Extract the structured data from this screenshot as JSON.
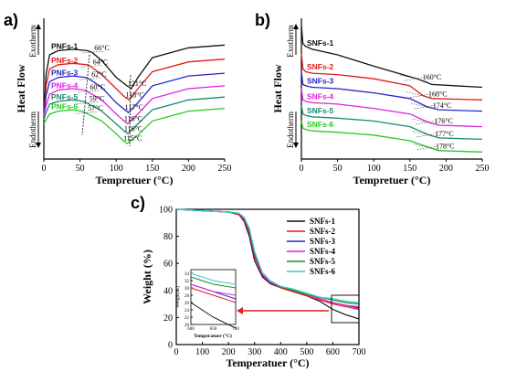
{
  "colors": {
    "SFs1": "#111111",
    "SFs2": "#e01b1b",
    "SFs3": "#2525c8",
    "SFs4": "#e020e0",
    "SFs5": "#1a8a6e",
    "SFs6": "#22cc22",
    "c5": "#1f8f1f",
    "c6": "#2ed0c8",
    "arrow": "#e02020"
  },
  "panels": {
    "a": "a)",
    "b": "b)",
    "c": "c)"
  },
  "chart_data": [
    {
      "id": "a",
      "type": "line",
      "xlabel": "Tempretuer (°C)",
      "ylabel": "Heat Flow",
      "xlim": [
        0,
        250
      ],
      "xticks": [
        "0",
        "50",
        "100",
        "150",
        "200",
        "250"
      ],
      "exo": "Exotherm",
      "endo": "Endotherm",
      "series_labels": [
        "PNFs-1",
        "PNFs-2",
        "PNFs-3",
        "PNFs-4",
        "PNFs-5",
        "PNFs-6"
      ],
      "series": [
        {
          "name": "PNFs-1",
          "ann": [
            "66°C",
            "121°C"
          ],
          "x": [
            0,
            3,
            8,
            20,
            40,
            60,
            66,
            80,
            100,
            115,
            121,
            130,
            150,
            200,
            250
          ],
          "y": [
            0.3,
            0.6,
            0.74,
            0.77,
            0.78,
            0.77,
            0.76,
            0.7,
            0.58,
            0.52,
            0.5,
            0.58,
            0.72,
            0.79,
            0.81
          ]
        },
        {
          "name": "PNFs-2",
          "ann": [
            "64°C",
            "118°C"
          ],
          "x": [
            0,
            3,
            8,
            20,
            40,
            60,
            64,
            80,
            100,
            112,
            118,
            130,
            150,
            200,
            250
          ],
          "y": [
            0.3,
            0.52,
            0.64,
            0.67,
            0.68,
            0.67,
            0.66,
            0.6,
            0.5,
            0.44,
            0.42,
            0.5,
            0.62,
            0.69,
            0.71
          ]
        },
        {
          "name": "PNFs-3",
          "ann": [
            "62°C",
            "117°C"
          ],
          "x": [
            0,
            3,
            8,
            20,
            40,
            58,
            62,
            80,
            100,
            112,
            117,
            130,
            150,
            200,
            250
          ],
          "y": [
            0.3,
            0.45,
            0.55,
            0.58,
            0.59,
            0.58,
            0.57,
            0.51,
            0.4,
            0.35,
            0.33,
            0.4,
            0.52,
            0.59,
            0.61
          ]
        },
        {
          "name": "PNFs-4",
          "ann": [
            "60°C",
            "116°C"
          ],
          "x": [
            0,
            3,
            8,
            20,
            40,
            56,
            60,
            80,
            100,
            111,
            116,
            130,
            150,
            200,
            250
          ],
          "y": [
            0.3,
            0.38,
            0.46,
            0.49,
            0.5,
            0.49,
            0.48,
            0.42,
            0.32,
            0.27,
            0.25,
            0.32,
            0.43,
            0.5,
            0.52
          ]
        },
        {
          "name": "PNFs-5",
          "ann": [
            "59°C",
            "116°C"
          ],
          "x": [
            0,
            3,
            8,
            20,
            40,
            55,
            59,
            80,
            100,
            111,
            116,
            130,
            150,
            200,
            250
          ],
          "y": [
            0.28,
            0.33,
            0.39,
            0.41,
            0.42,
            0.41,
            0.4,
            0.34,
            0.25,
            0.2,
            0.18,
            0.25,
            0.35,
            0.42,
            0.44
          ]
        },
        {
          "name": "PNFs-6",
          "ann": [
            "57°C",
            "115°C"
          ],
          "x": [
            0,
            3,
            8,
            20,
            40,
            53,
            57,
            80,
            100,
            110,
            115,
            130,
            150,
            200,
            250
          ],
          "y": [
            0.25,
            0.28,
            0.32,
            0.34,
            0.35,
            0.34,
            0.33,
            0.27,
            0.18,
            0.13,
            0.11,
            0.17,
            0.27,
            0.34,
            0.36
          ]
        }
      ]
    },
    {
      "id": "b",
      "type": "line",
      "xlabel": "Tempretuer (°C)",
      "ylabel": "Heat Flow",
      "xlim": [
        0,
        250
      ],
      "xticks": [
        "0",
        "50",
        "100",
        "150",
        "200",
        "250"
      ],
      "exo": "Exotherm",
      "endo": "Endotherm",
      "series_labels": [
        "SNFs-1",
        "SNFs-2",
        "SNFs-3",
        "SNFs-4",
        "SNFs-5",
        "SNFs-6"
      ],
      "series": [
        {
          "name": "SNFs-1",
          "ann": "160°C",
          "x": [
            0,
            2,
            6,
            15,
            50,
            100,
            140,
            160,
            180,
            250
          ],
          "y": [
            0.95,
            0.82,
            0.8,
            0.78,
            0.74,
            0.66,
            0.6,
            0.57,
            0.53,
            0.51
          ]
        },
        {
          "name": "SNFs-2",
          "ann": "168°C",
          "x": [
            0,
            2,
            6,
            15,
            50,
            100,
            150,
            168,
            180,
            250
          ],
          "y": [
            0.75,
            0.64,
            0.62,
            0.61,
            0.6,
            0.57,
            0.52,
            0.45,
            0.43,
            0.42
          ]
        },
        {
          "name": "SNFs-3",
          "ann": "174°C",
          "x": [
            0,
            2,
            6,
            15,
            50,
            100,
            150,
            174,
            190,
            250
          ],
          "y": [
            0.62,
            0.53,
            0.52,
            0.51,
            0.5,
            0.47,
            0.43,
            0.37,
            0.35,
            0.34
          ]
        },
        {
          "name": "SNFs-4",
          "ann": "176°C",
          "x": [
            0,
            2,
            6,
            15,
            50,
            100,
            150,
            176,
            190,
            250
          ],
          "y": [
            0.5,
            0.42,
            0.41,
            0.4,
            0.39,
            0.36,
            0.32,
            0.26,
            0.24,
            0.23
          ]
        },
        {
          "name": "SNFs-5",
          "ann": "177°C",
          "x": [
            0,
            2,
            6,
            15,
            50,
            100,
            150,
            177,
            190,
            250
          ],
          "y": [
            0.38,
            0.32,
            0.31,
            0.3,
            0.29,
            0.27,
            0.23,
            0.17,
            0.15,
            0.14
          ]
        },
        {
          "name": "SNFs-6",
          "ann": "178°C",
          "x": [
            0,
            2,
            6,
            15,
            50,
            100,
            150,
            178,
            190,
            250
          ],
          "y": [
            0.27,
            0.22,
            0.21,
            0.2,
            0.19,
            0.17,
            0.13,
            0.08,
            0.06,
            0.05
          ]
        }
      ]
    },
    {
      "id": "c",
      "type": "line",
      "xlabel": "Temperatuer (°C)",
      "ylabel": "Weight (%)",
      "xlim": [
        0,
        700
      ],
      "ylim": [
        0,
        100
      ],
      "xticks": [
        "0",
        "100",
        "200",
        "300",
        "400",
        "500",
        "600",
        "700"
      ],
      "yticks": [
        "0",
        "20",
        "40",
        "60",
        "80",
        "100"
      ],
      "legend_position": "top-right",
      "series": [
        {
          "name": "SNFs-1",
          "x": [
            0,
            100,
            200,
            240,
            260,
            280,
            300,
            330,
            360,
            400,
            450,
            500,
            550,
            600,
            650,
            700
          ],
          "y": [
            100,
            99,
            98,
            96,
            91,
            80,
            62,
            50,
            45,
            42,
            39,
            36,
            32,
            26,
            22,
            19
          ]
        },
        {
          "name": "SNFs-2",
          "x": [
            0,
            100,
            200,
            240,
            260,
            280,
            300,
            330,
            360,
            400,
            450,
            500,
            550,
            600,
            650,
            700
          ],
          "y": [
            100,
            99,
            98,
            96,
            92,
            82,
            65,
            51,
            46,
            42,
            39,
            36,
            33,
            30,
            28,
            26
          ]
        },
        {
          "name": "SNFs-3",
          "x": [
            0,
            100,
            200,
            240,
            260,
            280,
            300,
            330,
            360,
            400,
            450,
            500,
            550,
            600,
            650,
            700
          ],
          "y": [
            100,
            99,
            98,
            97,
            93,
            84,
            67,
            52,
            46,
            43,
            40,
            37,
            34,
            31,
            29,
            27
          ]
        },
        {
          "name": "SNFs-4",
          "x": [
            0,
            100,
            200,
            240,
            260,
            280,
            300,
            330,
            360,
            400,
            450,
            500,
            550,
            600,
            650,
            700
          ],
          "y": [
            100,
            99,
            98,
            97,
            93,
            84,
            67,
            52,
            46,
            43,
            40,
            37,
            34,
            31,
            29,
            28
          ]
        },
        {
          "name": "SNFs-5",
          "x": [
            0,
            100,
            200,
            240,
            260,
            280,
            300,
            330,
            360,
            400,
            450,
            500,
            550,
            600,
            650,
            700
          ],
          "y": [
            100,
            99,
            98,
            97,
            94,
            85,
            68,
            53,
            47,
            43,
            40,
            37,
            35,
            33,
            31,
            30
          ]
        },
        {
          "name": "SNFs-6",
          "x": [
            0,
            100,
            200,
            240,
            260,
            280,
            300,
            330,
            360,
            400,
            450,
            500,
            550,
            600,
            650,
            700
          ],
          "y": [
            100,
            99,
            98,
            97,
            94,
            86,
            69,
            53,
            47,
            43,
            41,
            38,
            35,
            34,
            32,
            31
          ]
        }
      ],
      "inset": {
        "xlabel": "Temperatuer (°C)",
        "ylabel": "Weight(%)",
        "xlim": [
          600,
          700
        ],
        "ylim": [
          20,
          35
        ],
        "xticks": [
          "600",
          "650",
          "700"
        ],
        "yticks": [
          "20",
          "22",
          "24",
          "26",
          "28",
          "30",
          "32",
          "34"
        ]
      }
    }
  ]
}
